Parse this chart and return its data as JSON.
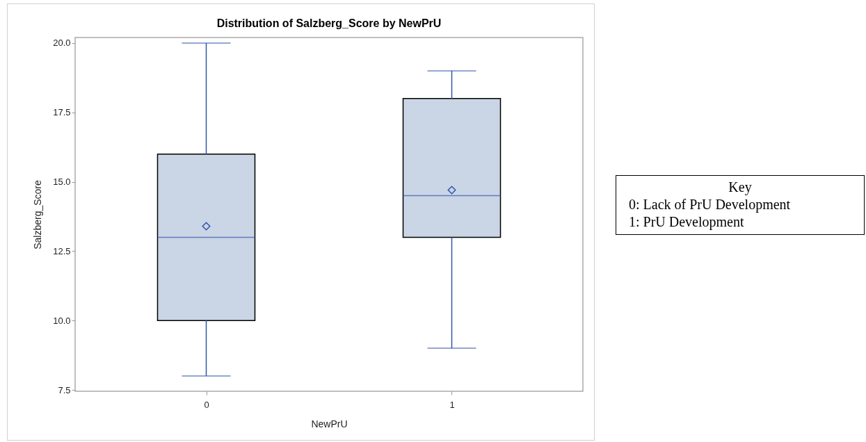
{
  "chart_data": {
    "type": "box",
    "title": "Distribution of Salzberg_Score by NewPrU",
    "xlabel": "NewPrU",
    "ylabel": "Salzberg_Score",
    "categories": [
      "0",
      "1"
    ],
    "series": [
      {
        "color": "#cad5e5",
        "boxes": [
          {
            "low": 8,
            "q1": 10,
            "median": 13,
            "q3": 16,
            "high": 20,
            "mean": 13.4
          },
          {
            "low": 9,
            "q1": 13,
            "median": 14.5,
            "q3": 18,
            "high": 19,
            "mean": 14.7
          }
        ]
      }
    ],
    "ylim": [
      7.45,
      20.2
    ],
    "yticks": [
      7.5,
      {
        "value": 10,
        "label": "10.0"
      },
      12.5,
      {
        "value": 15,
        "label": "15.0"
      },
      17.5,
      {
        "value": 20,
        "label": "20.0"
      }
    ],
    "marker": "diamond",
    "grid": false,
    "annotations": [
      "Key",
      "0: Lack of PrU Development",
      "1: PrU Development"
    ]
  }
}
